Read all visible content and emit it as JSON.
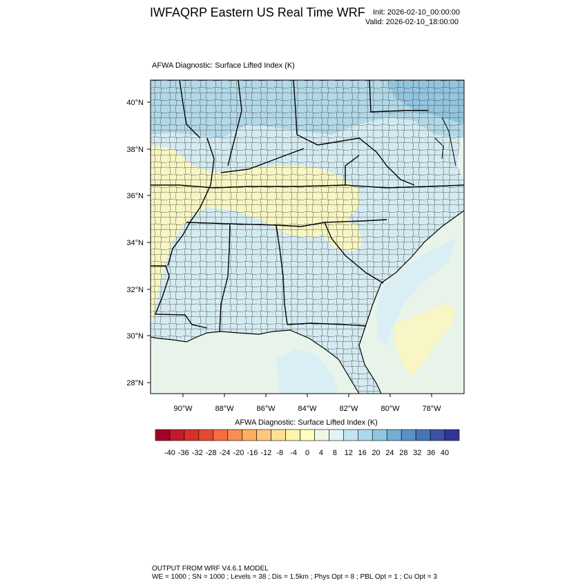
{
  "header": {
    "title": "IWFAQRP Eastern US Real Time WRF",
    "init": "Init: 2026-02-10_00:00:00",
    "valid": "Valid: 2026-02-10_18:00:00"
  },
  "map": {
    "field_title": "AFWA Diagnostic: Surface Lifted Index   (K)",
    "lat_labels": [
      "40°N",
      "38°N",
      "36°N",
      "34°N",
      "32°N",
      "30°N",
      "28°N"
    ],
    "lon_labels": [
      "90°W",
      "88°W",
      "86°W",
      "84°W",
      "82°W",
      "80°W",
      "78°W"
    ],
    "ocean_color": "#e8f3ea"
  },
  "colorbar": {
    "title": "AFWA Diagnostic: Surface Lifted Index  (K)",
    "ticks": [
      "-40",
      "-36",
      "-32",
      "-28",
      "-24",
      "-20",
      "-16",
      "-12",
      "-8",
      "-4",
      "0",
      "4",
      "8",
      "12",
      "16",
      "20",
      "24",
      "28",
      "32",
      "36",
      "40"
    ],
    "colors": [
      "#a50026",
      "#c11a2b",
      "#d73027",
      "#e34a33",
      "#f46d43",
      "#f88d52",
      "#fdae61",
      "#fec77d",
      "#fee090",
      "#fdf5ac",
      "#ffffbf",
      "#eef8e4",
      "#e0f3f8",
      "#c3e3ee",
      "#abd9e9",
      "#92c5de",
      "#74add1",
      "#5d8fc4",
      "#4575b4",
      "#3b53a4",
      "#313695"
    ]
  },
  "footer": {
    "line1": "OUTPUT FROM WRF V4.6.1 MODEL",
    "line2": "WE = 1000 ; SN = 1000 ; Levels = 38 ; Dis = 1.5km ; Phys Opt = 8 ; PBL Opt = 1 ; Cu Opt = 3"
  }
}
